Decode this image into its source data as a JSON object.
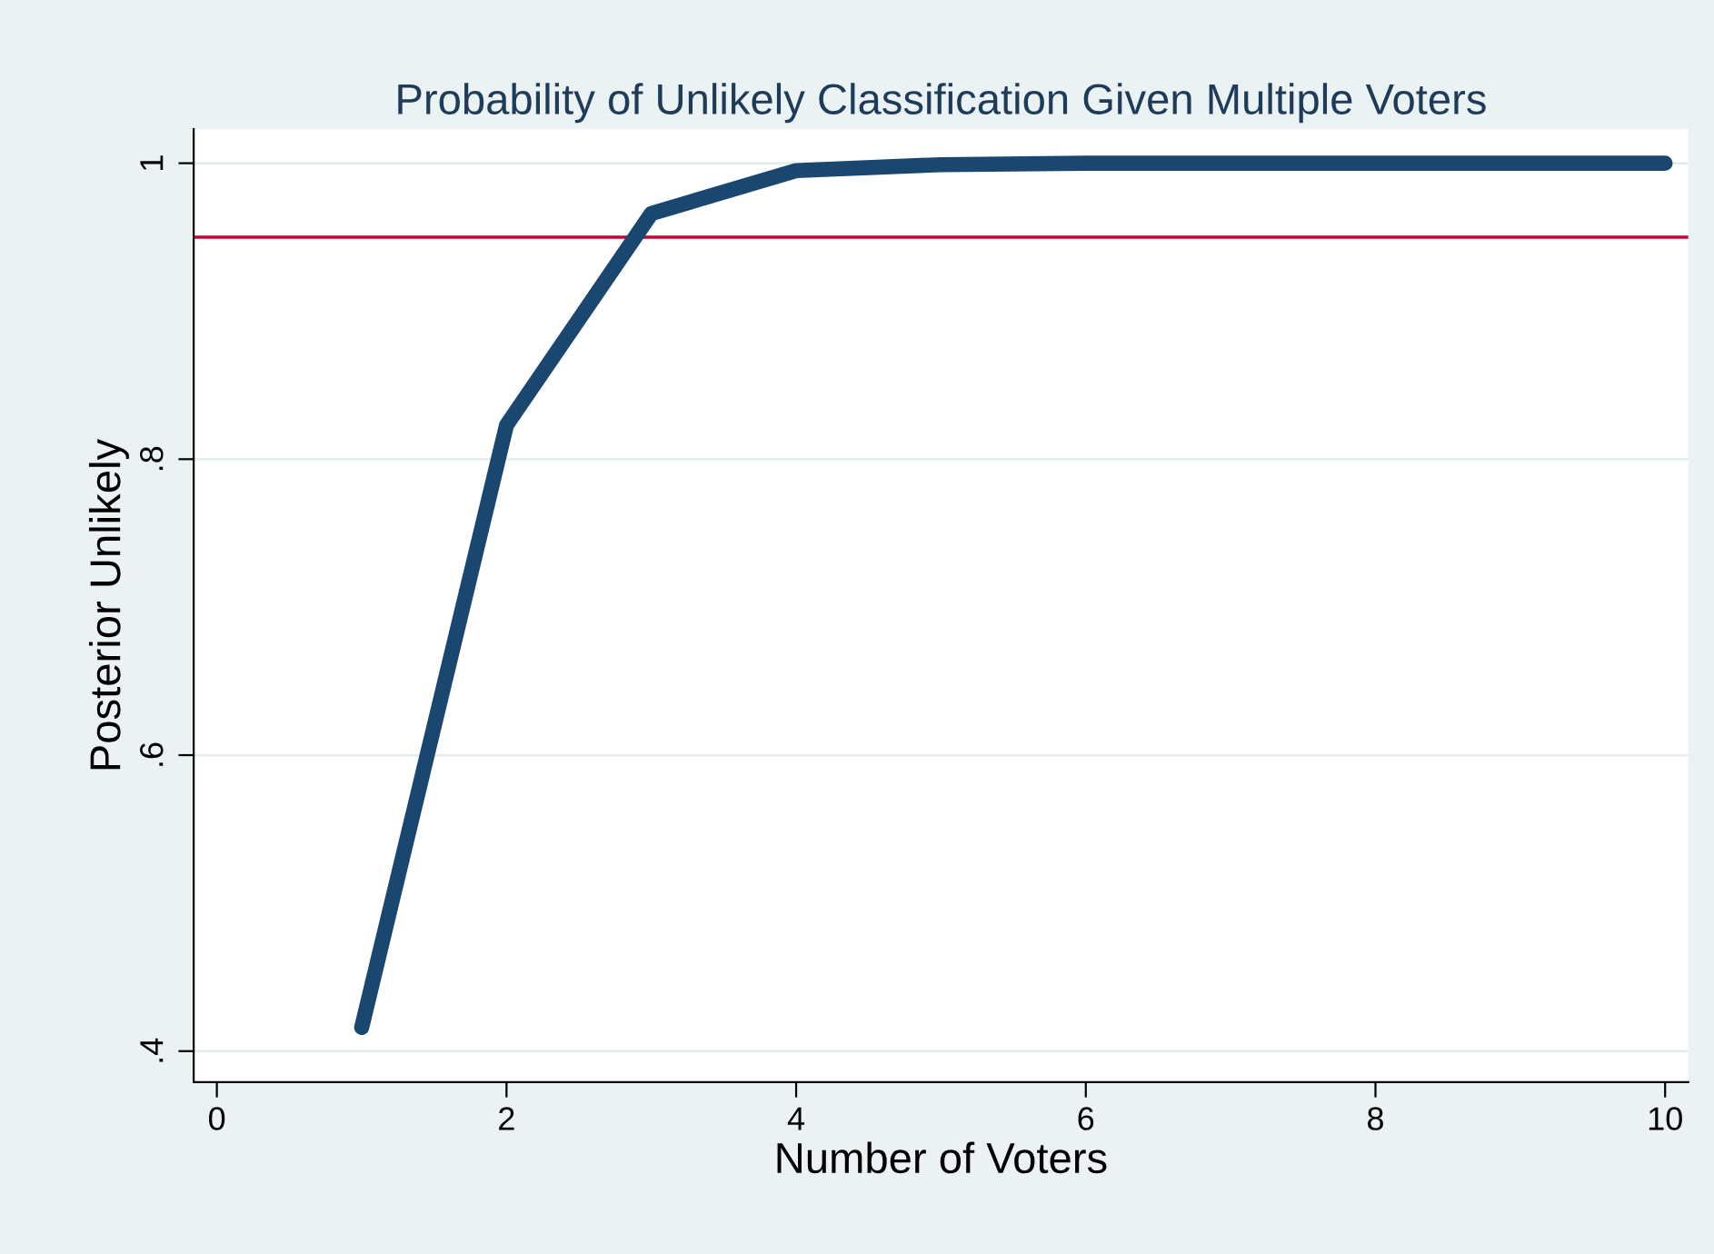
{
  "chart_data": {
    "type": "line",
    "title": "Probability of Unlikely Classification Given Multiple Voters",
    "xlabel": "Number of Voters",
    "ylabel": "Posterior Unlikely",
    "x": [
      1,
      2,
      3,
      4,
      5,
      6,
      7,
      8,
      9,
      10
    ],
    "series": [
      {
        "color": "#1a476f",
        "values": [
          0.416,
          0.823,
          0.966,
          0.995,
          0.999,
          1.0,
          1.0,
          1.0,
          1.0,
          1.0
        ]
      }
    ],
    "xlim": [
      -0.16,
      10.16
    ],
    "xticks": [
      0,
      2,
      4,
      6,
      8,
      10
    ],
    "ylim": [
      0.379,
      1.023
    ],
    "yticks": [
      {
        "value": 0.4,
        "label": ".4"
      },
      {
        "value": 0.6,
        "label": ".6"
      },
      {
        "value": 0.8,
        "label": ".8"
      },
      1
    ],
    "ref_lines": [
      {
        "axis": "y",
        "value": 0.95,
        "color": "#c10534"
      }
    ],
    "grid": "y",
    "line_style": "solid"
  }
}
